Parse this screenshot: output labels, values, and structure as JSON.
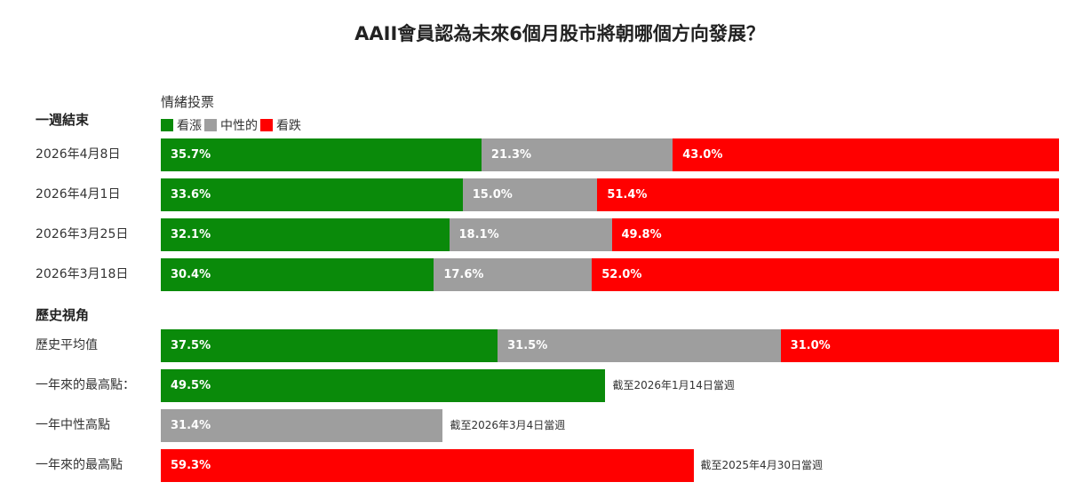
{
  "chart_data": {
    "type": "bar",
    "orientation": "horizontal",
    "stacked": true,
    "title": "AAII會員認為未來6個月股市將朝哪個方向發展？",
    "legend_title": "情緒投票",
    "legend_placement": "top-left",
    "xlim": [
      0,
      100
    ],
    "unit": "%",
    "colors": {
      "bullish": "#0a8a0a",
      "neutral": "#9e9e9e",
      "bearish": "#ff0000"
    },
    "series": [
      {
        "key": "bullish",
        "name": "看漲"
      },
      {
        "key": "neutral",
        "name": "中性的"
      },
      {
        "key": "bearish",
        "name": "看跌"
      }
    ],
    "sections": [
      {
        "label": "一週結束",
        "rows": [
          {
            "label": "2026年4月8日",
            "segments": [
              {
                "series": "bullish",
                "value": 35.7,
                "text": "35.7%"
              },
              {
                "series": "neutral",
                "value": 21.3,
                "text": "21.3%"
              },
              {
                "series": "bearish",
                "value": 43.0,
                "text": "43.0%"
              }
            ]
          },
          {
            "label": "2026年4月1日",
            "segments": [
              {
                "series": "bullish",
                "value": 33.6,
                "text": "33.6%"
              },
              {
                "series": "neutral",
                "value": 15.0,
                "text": "15.0%"
              },
              {
                "series": "bearish",
                "value": 51.4,
                "text": "51.4%"
              }
            ]
          },
          {
            "label": "2026年3月25日",
            "segments": [
              {
                "series": "bullish",
                "value": 32.1,
                "text": "32.1%"
              },
              {
                "series": "neutral",
                "value": 18.1,
                "text": "18.1%"
              },
              {
                "series": "bearish",
                "value": 49.8,
                "text": "49.8%"
              }
            ]
          },
          {
            "label": "2026年3月18日",
            "segments": [
              {
                "series": "bullish",
                "value": 30.4,
                "text": "30.4%"
              },
              {
                "series": "neutral",
                "value": 17.6,
                "text": "17.6%"
              },
              {
                "series": "bearish",
                "value": 52.0,
                "text": "52.0%"
              }
            ]
          }
        ]
      },
      {
        "label": "歷史視角",
        "rows": [
          {
            "label": "歷史平均值",
            "segments": [
              {
                "series": "bullish",
                "value": 37.5,
                "text": "37.5%"
              },
              {
                "series": "neutral",
                "value": 31.5,
                "text": "31.5%"
              },
              {
                "series": "bearish",
                "value": 31.0,
                "text": "31.0%"
              }
            ]
          },
          {
            "label": "一年來的最高點：",
            "segments": [
              {
                "series": "bullish",
                "value": 49.5,
                "text": "49.5%"
              }
            ],
            "note": "截至2026年1月14日當週"
          },
          {
            "label": "一年中性高點",
            "segments": [
              {
                "series": "neutral",
                "value": 31.4,
                "text": "31.4%"
              }
            ],
            "note": "截至2026年3月4日當週"
          },
          {
            "label": "一年來的最高點",
            "segments": [
              {
                "series": "bearish",
                "value": 59.3,
                "text": "59.3%"
              }
            ],
            "note": "截至2025年4月30日當週"
          }
        ]
      }
    ]
  }
}
